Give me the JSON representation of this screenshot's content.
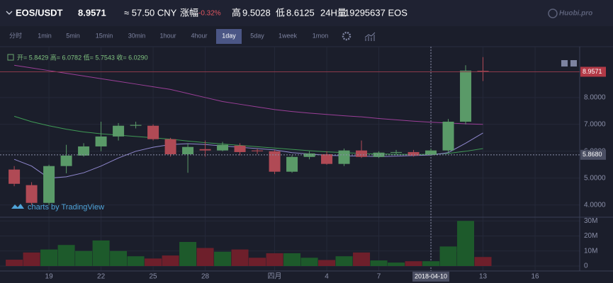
{
  "header": {
    "pair": "EOS/USDT",
    "price": "8.9571",
    "cny": "≈ 57.50 CNY",
    "change_label": "涨幅",
    "change": "-0.32%",
    "high_label": "高",
    "high": "9.5028",
    "low_label": "低",
    "low": "8.6125",
    "volume_label": "24H量",
    "volume": "19295637 EOS",
    "brand": "Huobi.pro"
  },
  "toolbar": {
    "intervals": [
      "分时",
      "1min",
      "5min",
      "15min",
      "30min",
      "1hour",
      "4hour",
      "1day",
      "5day",
      "1week",
      "1mon"
    ]
  },
  "chart_data": {
    "type": "candlestick",
    "legend_ohlc": "开= 5.8429 高= 6.0782 低= 5.7543 收= 6.0290",
    "watermark": "charts by TradingView",
    "open": [
      5.32,
      4.74,
      4.08,
      5.45,
      5.84,
      6.18,
      6.55,
      6.95,
      6.95,
      6.45,
      5.89,
      6.08,
      6.03,
      6.21,
      6.03,
      6.0,
      5.24,
      5.79,
      5.89,
      5.53,
      6.03,
      5.79,
      5.95,
      5.97,
      5.87,
      6.03,
      7.1,
      8.99
    ],
    "high": [
      5.45,
      4.85,
      5.5,
      6.24,
      6.3,
      7.1,
      7.05,
      7.1,
      7.0,
      6.5,
      6.3,
      6.4,
      6.35,
      6.3,
      6.1,
      6.05,
      5.85,
      6.0,
      6.0,
      6.1,
      6.4,
      6.0,
      6.05,
      6.05,
      6.1,
      7.2,
      9.2,
      9.5028
    ],
    "low": [
      4.7,
      4.0,
      4.0,
      5.18,
      5.8,
      6.0,
      6.4,
      6.85,
      6.4,
      5.8,
      5.2,
      5.8,
      6.0,
      5.85,
      5.9,
      5.15,
      5.2,
      5.7,
      5.5,
      5.45,
      5.75,
      5.75,
      5.9,
      5.8,
      5.85,
      5.95,
      7.0,
      8.6125
    ],
    "close": [
      4.79,
      4.08,
      5.45,
      5.84,
      6.18,
      6.55,
      6.95,
      6.98,
      6.45,
      5.89,
      6.16,
      6.03,
      6.24,
      5.97,
      6.0,
      5.24,
      5.79,
      5.92,
      5.53,
      6.03,
      5.79,
      5.95,
      5.97,
      5.84,
      6.03,
      7.1,
      9.0,
      8.9571
    ],
    "up_color": "#5a9a68",
    "down_color": "#b04a55",
    "ma": [
      {
        "color": "#9b3f98",
        "values": [
          9.2,
          9.1,
          9.0,
          8.9,
          8.8,
          8.7,
          8.6,
          8.5,
          8.4,
          8.3,
          8.15,
          8.0,
          7.85,
          7.75,
          7.65,
          7.55,
          7.48,
          7.42,
          7.37,
          7.32,
          7.28,
          7.22,
          7.17,
          7.12,
          7.08,
          7.05,
          7.02,
          7.0
        ]
      },
      {
        "color": "#3f9a55",
        "values": [
          7.3,
          7.1,
          6.95,
          6.82,
          6.72,
          6.65,
          6.6,
          6.55,
          6.5,
          6.45,
          6.38,
          6.32,
          6.27,
          6.22,
          6.17,
          6.12,
          6.07,
          6.02,
          5.98,
          5.95,
          5.92,
          5.9,
          5.89,
          5.88,
          5.89,
          5.92,
          6.0,
          6.1
        ]
      },
      {
        "color": "#9088cf",
        "values": [
          5.7,
          5.45,
          5.0,
          5.05,
          5.2,
          5.45,
          5.75,
          6.0,
          6.15,
          6.25,
          6.28,
          6.25,
          6.2,
          6.15,
          6.1,
          6.05,
          5.95,
          5.9,
          5.85,
          5.83,
          5.82,
          5.8,
          5.82,
          5.84,
          5.86,
          5.95,
          6.3,
          6.68
        ]
      }
    ],
    "ylim": [
      3.6,
      9.89
    ],
    "yticks": [
      {
        "value": 4,
        "label": "4.0000"
      },
      {
        "value": 5,
        "label": "5.0000"
      },
      {
        "value": 6,
        "label": "6.0000"
      },
      {
        "value": 7,
        "label": "7.0000"
      },
      {
        "value": 8,
        "label": "8.0000"
      }
    ],
    "last_price": 8.9571,
    "crosshair_price": {
      "value": 5.868,
      "label": "5.8680"
    },
    "xlim": [
      -0.82,
      32.57
    ],
    "xticks": [
      {
        "value": 2,
        "label": "19"
      },
      {
        "value": 5,
        "label": "22"
      },
      {
        "value": 8,
        "label": "25"
      },
      {
        "value": 11,
        "label": "28"
      },
      {
        "value": 15,
        "label": "四月"
      },
      {
        "value": 18,
        "label": "4"
      },
      {
        "value": 21,
        "label": "7"
      },
      {
        "value": 24,
        "label": "2018-04-10"
      },
      {
        "value": 27,
        "label": "13"
      },
      {
        "value": 30,
        "label": "16"
      }
    ],
    "crosshair_tick": 7,
    "volume": [
      4.2,
      9,
      11,
      14,
      10,
      17,
      10,
      6.5,
      5,
      7,
      16,
      12,
      9.5,
      11,
      5.5,
      8.5,
      8.5,
      5.5,
      4,
      6.5,
      9,
      3.7,
      2.3,
      3.2,
      3.2,
      13,
      30,
      6
    ],
    "volume_up_color": "#1d5a2b",
    "volume_down_color": "#6e1f2b",
    "vlim": [
      0,
      32
    ],
    "vticks": [
      0,
      {
        "value": 10,
        "label": "10M"
      },
      {
        "value": 20,
        "label": "20M"
      },
      {
        "value": 30,
        "label": "30M"
      }
    ],
    "grid": true
  }
}
